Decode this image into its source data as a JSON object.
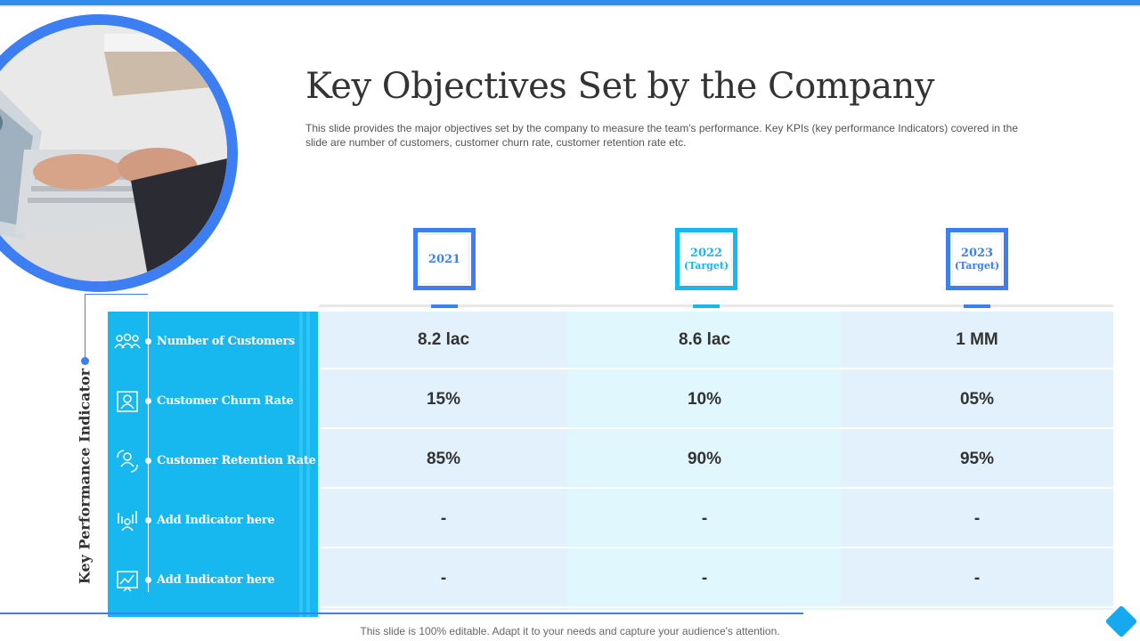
{
  "title": "Key Objectives Set by the Company",
  "subtitle": "This slide provides the major objectives set by the company to measure the team's performance. Key KPIs (key performance Indicators) covered in the slide are number of customers, customer churn rate, customer retention rate etc.",
  "kpi_axis_label": "Key Performance Indicator",
  "columns": [
    {
      "year": "2021",
      "note": "",
      "color": "#3d7ef2"
    },
    {
      "year": "2022",
      "note": "(Target)",
      "color": "#16b8ef"
    },
    {
      "year": "2023",
      "note": "(Target)",
      "color": "#3d7ef2"
    }
  ],
  "rows": [
    {
      "label": "Number of Customers",
      "icon": "group-icon",
      "values": [
        "8.2 lac",
        "8.6 lac",
        "1 MM"
      ]
    },
    {
      "label": "Customer Churn Rate",
      "icon": "user-frame-icon",
      "values": [
        "15%",
        "10%",
        "05%"
      ]
    },
    {
      "label": "Customer Retention Rate",
      "icon": "user-refresh-icon",
      "values": [
        "85%",
        "90%",
        "95%"
      ]
    },
    {
      "label": "Add Indicator here",
      "icon": "chart-people-icon",
      "values": [
        "-",
        "-",
        "-"
      ]
    },
    {
      "label": "Add Indicator here",
      "icon": "chart-board-icon",
      "values": [
        "-",
        "-",
        "-"
      ]
    }
  ],
  "footer": "This slide is 100% editable. Adapt it to your needs and capture your audience's attention.",
  "colors": {
    "accent_blue": "#3d7ef2",
    "accent_cyan": "#16b8ef",
    "col_light_1": "#e3f1fd",
    "col_light_2": "#e0f7fd"
  }
}
